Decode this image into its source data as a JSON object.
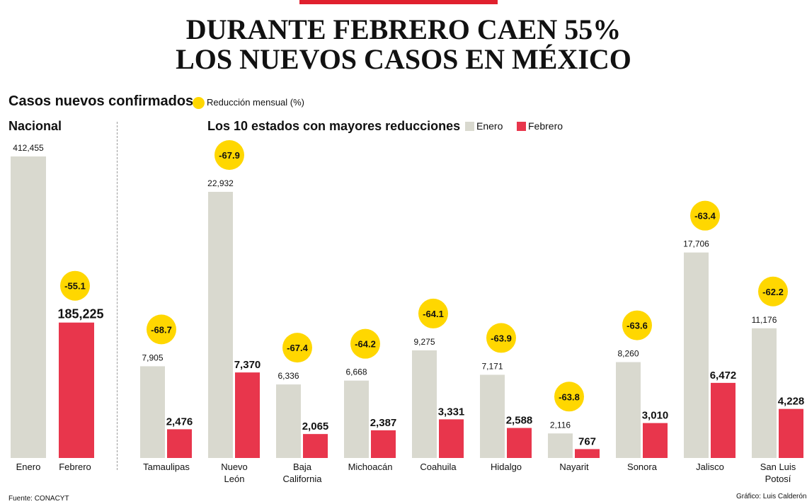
{
  "title": {
    "line1": "DURANTE FEBRERO CAEN 55%",
    "line2": "LOS NUEVOS CASOS EN MÉXICO"
  },
  "subtitle": "Casos nuevos confirmados",
  "reduction_legend": "Reducción mensual (%)",
  "national_title": "Nacional",
  "states_title": "Los 10 estados con mayores reducciones",
  "legend": {
    "enero": "Enero",
    "febrero": "Febrero"
  },
  "colors": {
    "enero": "#d9d9cf",
    "febrero": "#e8364c",
    "badge": "#ffd700",
    "topbar": "#e0202e"
  },
  "footer": {
    "source": "Fuente: CONACYT",
    "credit": "Gráfico: Luis Calderón"
  },
  "chart_data": [
    {
      "type": "bar",
      "title": "Nacional",
      "categories": [
        "Enero",
        "Febrero"
      ],
      "values": [
        412455,
        185225
      ],
      "value_labels": [
        "412,455",
        "185,225"
      ],
      "reduction": "-55.1",
      "ylim": [
        0,
        412455
      ]
    },
    {
      "type": "bar",
      "title": "Los 10 estados con mayores reducciones",
      "categories": [
        [
          "Tamaulipas"
        ],
        [
          "Nuevo",
          "León"
        ],
        [
          "Baja",
          "California"
        ],
        [
          "Michoacán"
        ],
        [
          "Coahuila"
        ],
        [
          "Hidalgo"
        ],
        [
          "Nayarit"
        ],
        [
          "Sonora"
        ],
        [
          "Jalisco"
        ],
        [
          "San Luis",
          "Potosí"
        ]
      ],
      "series": [
        {
          "name": "Enero",
          "values": [
            7905,
            22932,
            6336,
            6668,
            9275,
            7171,
            2116,
            8260,
            17706,
            11176
          ],
          "labels": [
            "7,905",
            "22,932",
            "6,336",
            "6,668",
            "9,275",
            "7,171",
            "2,116",
            "8,260",
            "17,706",
            "11,176"
          ]
        },
        {
          "name": "Febrero",
          "values": [
            2476,
            7370,
            2065,
            2387,
            3331,
            2588,
            767,
            3010,
            6472,
            4228
          ],
          "labels": [
            "2,476",
            "7,370",
            "2,065",
            "2,387",
            "3,331",
            "2,588",
            "767",
            "3,010",
            "6,472",
            "4,228"
          ]
        }
      ],
      "reductions": [
        "-68.7",
        "-67.9",
        "-67.4",
        "-64.2",
        "-64.1",
        "-63.9",
        "-63.8",
        "-63.6",
        "-63.4",
        "-62.2"
      ],
      "ylim": [
        0,
        22932
      ]
    }
  ]
}
